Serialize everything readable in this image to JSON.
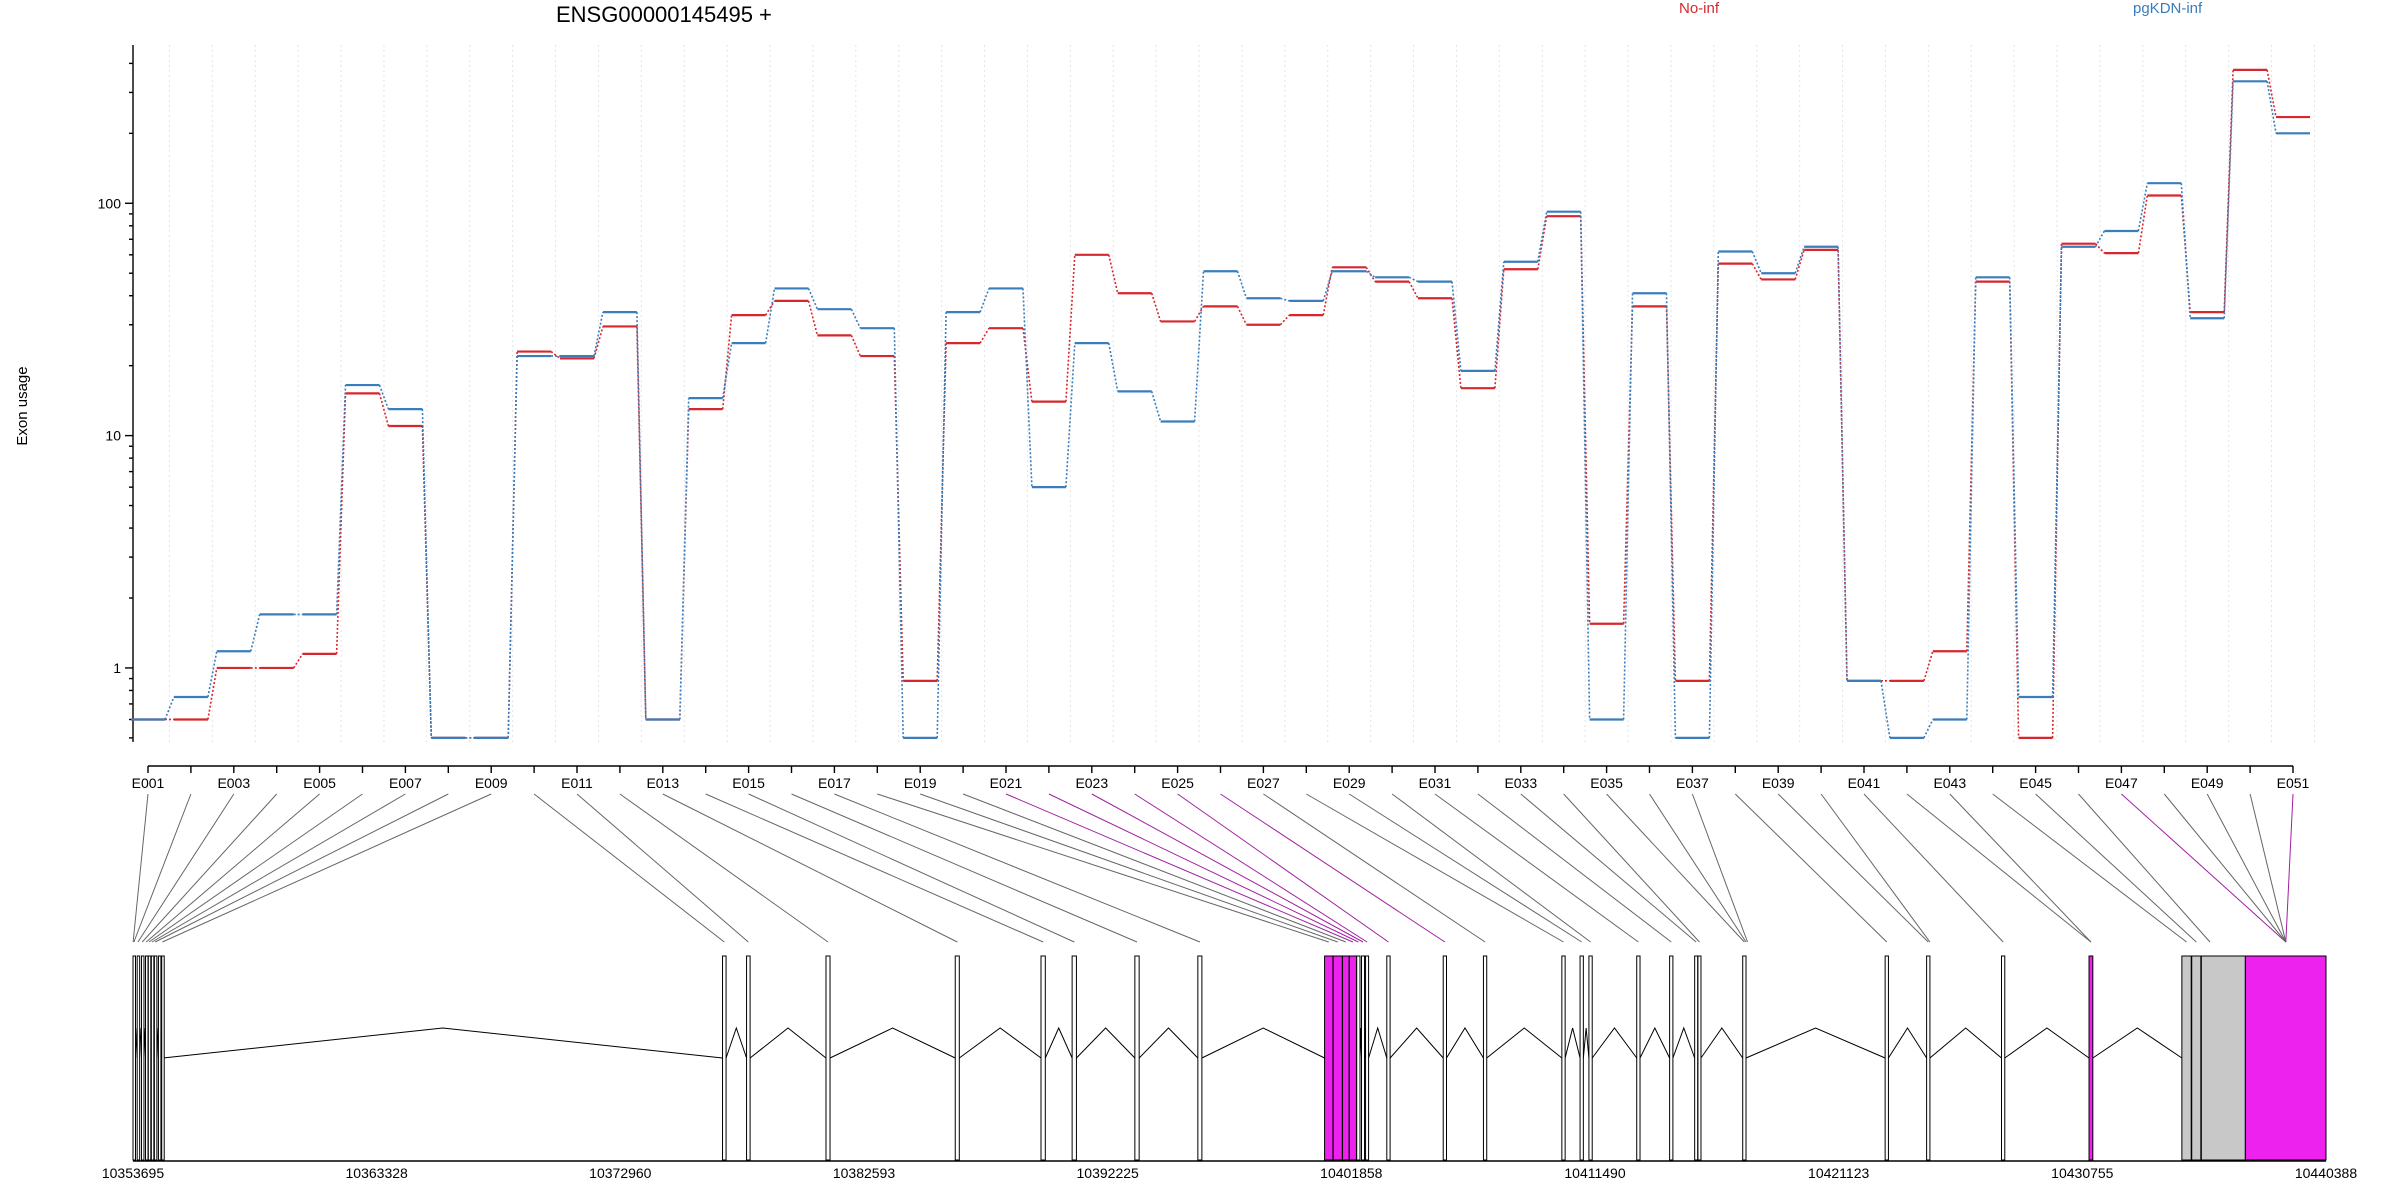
{
  "title": "ENSG00000145495 +",
  "colors": {
    "No-inf": "#d6272d",
    "pgKDN-inf": "#3a7dbb",
    "highlight": "#ee22ee",
    "utr": "#c8c8c8"
  },
  "chart_data": {
    "type": "line",
    "ylabel": "Exon usage",
    "yscale": "log",
    "ylim": [
      0.48,
      480
    ],
    "yticks": [
      1,
      10,
      100
    ],
    "categories": [
      "E001",
      "E002",
      "E003",
      "E004",
      "E005",
      "E006",
      "E007",
      "E008",
      "E009",
      "E010",
      "E011",
      "E012",
      "E013",
      "E014",
      "E015",
      "E016",
      "E017",
      "E018",
      "E019",
      "E020",
      "E021",
      "E022",
      "E023",
      "E024",
      "E025",
      "E026",
      "E027",
      "E028",
      "E029",
      "E030",
      "E031",
      "E032",
      "E033",
      "E034",
      "E035",
      "E036",
      "E037",
      "E038",
      "E039",
      "E040",
      "E041",
      "E042",
      "E043",
      "E044",
      "E045",
      "E046",
      "E047",
      "E048",
      "E049",
      "E050",
      "E051"
    ],
    "tick_labels": [
      "E001",
      "E003",
      "E005",
      "E007",
      "E009",
      "E011",
      "E013",
      "E015",
      "E017",
      "E019",
      "E021",
      "E023",
      "E025",
      "E027",
      "E029",
      "E031",
      "E033",
      "E035",
      "E037",
      "E039",
      "E041",
      "E043",
      "E045",
      "E047",
      "E049",
      "E051"
    ],
    "series": [
      {
        "name": "No-inf",
        "values": [
          0.6,
          0.6,
          1.0,
          1.0,
          1.15,
          15.2,
          11.0,
          0.5,
          0.5,
          23,
          21.5,
          29.5,
          0.6,
          13,
          33,
          38,
          27,
          22,
          0.88,
          25,
          29,
          14,
          60,
          41,
          31,
          36,
          30,
          33,
          53,
          46,
          39,
          16,
          52,
          88,
          1.55,
          36,
          0.88,
          55,
          47,
          63,
          0.88,
          0.88,
          1.18,
          46,
          0.5,
          67,
          61,
          108,
          34,
          375,
          235
        ]
      },
      {
        "name": "pgKDN-inf",
        "values": [
          0.6,
          0.75,
          1.18,
          1.7,
          1.7,
          16.5,
          13.0,
          0.5,
          0.5,
          22,
          22,
          34,
          0.6,
          14.5,
          25,
          43,
          35,
          29,
          0.5,
          34,
          43,
          6,
          25,
          15.5,
          11.5,
          51,
          39,
          38,
          51,
          48,
          46,
          19,
          56,
          92,
          0.6,
          41,
          0.5,
          62,
          50,
          65,
          0.88,
          0.5,
          0.6,
          48,
          0.75,
          65,
          76,
          122,
          32,
          335,
          200
        ]
      }
    ]
  },
  "gene_axis": {
    "start": 10353695,
    "end": 10440388,
    "tick_labels": [
      "10353695",
      "10363328",
      "10372960",
      "10382593",
      "10392225",
      "10401858",
      "10411490",
      "10421123",
      "10430755",
      "10440388"
    ],
    "exons": [
      {
        "start": 10353695,
        "end": 10353740
      },
      {
        "start": 10353860,
        "end": 10353920
      },
      {
        "start": 10354030,
        "end": 10354090
      },
      {
        "start": 10354190,
        "end": 10354240
      },
      {
        "start": 10354300,
        "end": 10354350
      },
      {
        "start": 10354420,
        "end": 10354470
      },
      {
        "start": 10354540,
        "end": 10354600
      },
      {
        "start": 10354700,
        "end": 10354750
      },
      {
        "start": 10354830,
        "end": 10354880
      },
      {
        "start": 10377000,
        "end": 10377140
      },
      {
        "start": 10377950,
        "end": 10378090
      },
      {
        "start": 10381090,
        "end": 10381250
      },
      {
        "start": 10386200,
        "end": 10386360
      },
      {
        "start": 10389590,
        "end": 10389760
      },
      {
        "start": 10390820,
        "end": 10390990
      },
      {
        "start": 10393300,
        "end": 10393470
      },
      {
        "start": 10395790,
        "end": 10395950
      },
      {
        "start": 10400800,
        "end": 10401130,
        "hl": true
      },
      {
        "start": 10401140,
        "end": 10401500,
        "hl": true
      },
      {
        "start": 10401510,
        "end": 10401770,
        "hl": true
      },
      {
        "start": 10401780,
        "end": 10402060,
        "hl": true
      },
      {
        "start": 10402070,
        "end": 10402200
      },
      {
        "start": 10402260,
        "end": 10402380
      },
      {
        "start": 10402420,
        "end": 10402540
      },
      {
        "start": 10403260,
        "end": 10403390
      },
      {
        "start": 10405490,
        "end": 10405620
      },
      {
        "start": 10407080,
        "end": 10407210
      },
      {
        "start": 10410180,
        "end": 10410310
      },
      {
        "start": 10410900,
        "end": 10411030
      },
      {
        "start": 10411250,
        "end": 10411380
      },
      {
        "start": 10413140,
        "end": 10413270
      },
      {
        "start": 10414440,
        "end": 10414570
      },
      {
        "start": 10415430,
        "end": 10415550
      },
      {
        "start": 10415560,
        "end": 10415680
      },
      {
        "start": 10417330,
        "end": 10417460
      },
      {
        "start": 10422960,
        "end": 10423090
      },
      {
        "start": 10424600,
        "end": 10424730
      },
      {
        "start": 10427560,
        "end": 10427690
      },
      {
        "start": 10431020,
        "end": 10431170,
        "hl": true
      },
      {
        "start": 10434690,
        "end": 10435060,
        "utr": true
      },
      {
        "start": 10435080,
        "end": 10435440,
        "utr": true
      },
      {
        "start": 10435460,
        "end": 10437200,
        "utr": true
      },
      {
        "start": 10437200,
        "end": 10440388,
        "hl": true
      }
    ],
    "connect_targets": [
      10353700,
      10353730,
      10353890,
      10354060,
      10354215,
      10354325,
      10354445,
      10354570,
      10354855,
      10377070,
      10378020,
      10381170,
      10386280,
      10389675,
      10390905,
      10393385,
      10395870,
      10400965,
      10401320,
      10401640,
      10401920,
      10402135,
      10402320,
      10402480,
      10403325,
      10405555,
      10407145,
      10410245,
      10410965,
      10411315,
      10413205,
      10414505,
      10415490,
      10415620,
      10417395,
      10417460,
      10417520,
      10423025,
      10424665,
      10424730,
      10427625,
      10431095,
      10431095,
      10434875,
      10435260,
      10435800,
      10438800,
      10438800,
      10438800,
      10438800,
      10438800
    ],
    "highlight_connections": [
      20,
      21,
      22,
      23,
      24,
      25,
      46,
      50
    ]
  }
}
